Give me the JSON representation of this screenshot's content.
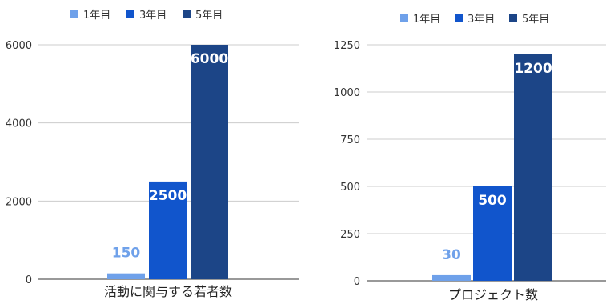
{
  "chart_data": [
    {
      "type": "bar",
      "title": "",
      "xlabel": "活動に関与する若者数",
      "ylabel": "",
      "categories": [
        "活動に関与する若者数"
      ],
      "series": [
        {
          "name": "1年目",
          "color": "#6fa1ea",
          "values": [
            150
          ]
        },
        {
          "name": "3年目",
          "color": "#1155cc",
          "values": [
            2500
          ]
        },
        {
          "name": "5年目",
          "color": "#1c4587",
          "values": [
            6000
          ]
        }
      ],
      "ylim": [
        0,
        6000
      ],
      "yticks": [
        "0",
        "2000",
        "4000",
        "6000"
      ],
      "grid": true,
      "legend": "top-left",
      "data_labels": true
    },
    {
      "type": "bar",
      "title": "",
      "xlabel": "プロジェクト数",
      "ylabel": "",
      "categories": [
        "プロジェクト数"
      ],
      "series": [
        {
          "name": "1年目",
          "color": "#6fa1ea",
          "values": [
            30
          ]
        },
        {
          "name": "3年目",
          "color": "#1155cc",
          "values": [
            500
          ]
        },
        {
          "name": "5年目",
          "color": "#1c4587",
          "values": [
            1200
          ]
        }
      ],
      "ylim": [
        0,
        1250
      ],
      "yticks": [
        "0",
        "250",
        "500",
        "750",
        "1000",
        "1250"
      ],
      "grid": true,
      "legend": "top-right",
      "data_labels": true
    }
  ]
}
